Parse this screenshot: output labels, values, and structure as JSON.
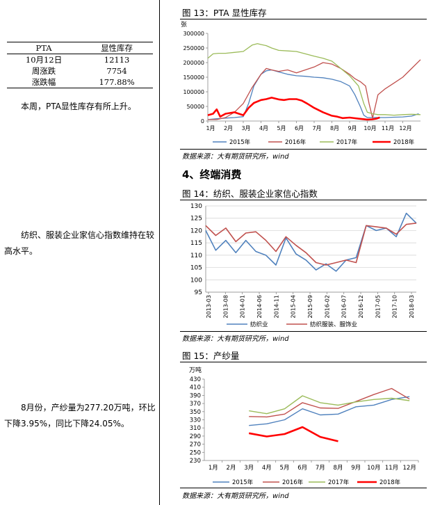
{
  "left": {
    "table": {
      "header": [
        "PTA",
        "显性库存"
      ],
      "rows": [
        [
          "10月12日",
          "12113"
        ],
        [
          "周涨跌",
          "7754"
        ],
        [
          "涨跌幅",
          "177.88%"
        ]
      ]
    },
    "para1": "本周，PTA显性库存有所上升。",
    "para2": "纺织、服装企业家信心指数维持在较高水平。",
    "para3": "8月份，产纱量为277.20万吨，环比下降3.95%，同比下降24.05%。"
  },
  "fig13": {
    "title": "图 13：PTA 显性库存",
    "source": "数据来源：大有期货研究所，wind"
  },
  "section": {
    "heading": "4、终端消费"
  },
  "fig14": {
    "title": "图 14：纺织、服装企业家信心指数",
    "source": "数据来源：大有期货研究所，wind"
  },
  "fig15": {
    "title": "图 15：产纱量",
    "source": "数据来源：大有期货研究所，wind"
  },
  "chart_data": [
    {
      "id": "fig13",
      "type": "line",
      "ylabel": "张",
      "ylim": [
        0,
        300000
      ],
      "yticks": [
        "0",
        "50000",
        "100000",
        "150000",
        "200000",
        "250000",
        "300000"
      ],
      "categories": [
        "1月",
        "2月",
        "3月",
        "4月",
        "5月",
        "6月",
        "7月",
        "8月",
        "9月",
        "10月",
        "11月",
        "12月"
      ],
      "series": [
        {
          "name": "2015年",
          "color": "#4F81BD",
          "x": [
            0,
            0.5,
            1,
            1.5,
            2,
            2.3,
            2.6,
            3,
            3.3,
            3.6,
            4,
            4.5,
            5,
            5.5,
            6,
            6.5,
            7,
            7.5,
            8,
            8.3,
            8.6,
            8.8,
            9,
            9.5,
            10,
            10.5,
            11,
            11.5,
            11.9
          ],
          "values": [
            5000,
            8000,
            10000,
            12000,
            15000,
            60000,
            120000,
            160000,
            172000,
            175000,
            168000,
            160000,
            155000,
            153000,
            150000,
            148000,
            143000,
            135000,
            120000,
            90000,
            50000,
            20000,
            12000,
            12000,
            12000,
            13000,
            14000,
            17000,
            25000
          ]
        },
        {
          "name": "2016年",
          "color": "#C0504D",
          "x": [
            0,
            0.5,
            1,
            1.5,
            2,
            2.5,
            3,
            3.3,
            3.6,
            4,
            4.5,
            5,
            5.5,
            6,
            6.5,
            7,
            7.5,
            8,
            8.3,
            8.6,
            8.9,
            9.1,
            9.3,
            9.6,
            10,
            10.5,
            11,
            11.5,
            12
          ],
          "values": [
            5000,
            5000,
            12000,
            30000,
            60000,
            115000,
            160000,
            180000,
            175000,
            170000,
            175000,
            165000,
            175000,
            185000,
            200000,
            195000,
            180000,
            160000,
            145000,
            135000,
            120000,
            60000,
            10000,
            90000,
            110000,
            130000,
            150000,
            180000,
            210000
          ]
        },
        {
          "name": "2017年",
          "color": "#9BBB59",
          "x": [
            0,
            0.3,
            0.6,
            1,
            1.5,
            2,
            2.5,
            2.8,
            3,
            3.3,
            3.6,
            4,
            4.5,
            5,
            5.5,
            6,
            6.5,
            7,
            7.5,
            8,
            8.5,
            8.8,
            9,
            9.3,
            9.6,
            10,
            10.5,
            11,
            11.5,
            12
          ],
          "values": [
            215000,
            230000,
            232000,
            232000,
            235000,
            238000,
            260000,
            265000,
            262000,
            258000,
            250000,
            242000,
            240000,
            238000,
            230000,
            222000,
            215000,
            205000,
            180000,
            155000,
            120000,
            60000,
            30000,
            25000,
            22000,
            22000,
            20000,
            22000,
            23000,
            22000
          ]
        },
        {
          "name": "2018年",
          "color": "#FF0000",
          "x": [
            0,
            0.3,
            0.5,
            0.7,
            1,
            1.5,
            2,
            2.3,
            2.6,
            3,
            3.3,
            3.6,
            4,
            4.3,
            4.6,
            5,
            5.3,
            5.6,
            6,
            6.5,
            7,
            7.3,
            7.6,
            8,
            8.5,
            9,
            9.3,
            9.5,
            9.7
          ],
          "values": [
            20000,
            25000,
            40000,
            15000,
            25000,
            30000,
            20000,
            45000,
            62000,
            72000,
            75000,
            80000,
            74000,
            72000,
            75000,
            75000,
            70000,
            60000,
            45000,
            30000,
            18000,
            15000,
            10000,
            12000,
            8000,
            5000,
            6000,
            8000,
            12113
          ]
        }
      ]
    },
    {
      "id": "fig14",
      "type": "line",
      "ylim": [
        95,
        130
      ],
      "yticks": [
        "95",
        "100",
        "105",
        "110",
        "115",
        "120",
        "125",
        "130"
      ],
      "xticks": [
        "2013-03",
        "2013-08",
        "2014-01",
        "2014-06",
        "2014-11",
        "2015-04",
        "2015-09",
        "2016-02",
        "2016-07",
        "2016-12",
        "2017-05",
        "2017-10",
        "2018-03"
      ],
      "series": [
        {
          "name": "纺织业",
          "color": "#4F81BD",
          "x": [
            0,
            1,
            2,
            3,
            4,
            5,
            6,
            7,
            8,
            9,
            10,
            11,
            12,
            13,
            14,
            15,
            16,
            17,
            18,
            19,
            20,
            21
          ],
          "values": [
            120,
            112,
            116,
            111,
            116,
            111.5,
            110,
            106,
            117,
            110.5,
            108,
            104,
            106.5,
            103.5,
            108,
            109,
            122,
            120,
            121,
            117.5,
            127,
            123
          ]
        },
        {
          "name": "纺织服装、服饰业",
          "color": "#C0504D",
          "x": [
            0,
            1,
            2,
            3,
            4,
            5,
            6,
            7,
            8,
            9,
            10,
            11,
            12,
            13,
            14,
            15,
            16,
            17,
            18,
            19,
            20,
            21
          ],
          "values": [
            122,
            118,
            121,
            115.5,
            119,
            119.5,
            116,
            111.5,
            117.5,
            114,
            111,
            107,
            106,
            107,
            108,
            107,
            122,
            121.5,
            121,
            118.5,
            122.5,
            123
          ]
        }
      ]
    },
    {
      "id": "fig15",
      "type": "line",
      "ylabel": "万吨",
      "ylim": [
        230,
        430
      ],
      "yticks": [
        "230",
        "250",
        "270",
        "290",
        "310",
        "330",
        "350",
        "370",
        "390",
        "410",
        "430"
      ],
      "categories": [
        "1月",
        "2月",
        "3月",
        "4月",
        "5月",
        "6月",
        "7月",
        "8月",
        "9月",
        "10月",
        "11月",
        "12月"
      ],
      "series": [
        {
          "name": "2015年",
          "color": "#4F81BD",
          "x": [
            3,
            4,
            5,
            6,
            7,
            8,
            9,
            10,
            11,
            12
          ],
          "values": [
            316,
            320,
            330,
            357,
            342,
            344,
            362,
            366,
            380,
            387
          ]
        },
        {
          "name": "2016年",
          "color": "#C0504D",
          "x": [
            3,
            4,
            5,
            6,
            7,
            8,
            9,
            10,
            11,
            12
          ],
          "values": [
            338,
            337,
            344,
            372,
            359,
            358,
            375,
            392,
            407,
            381
          ]
        },
        {
          "name": "2017年",
          "color": "#9BBB59",
          "x": [
            3,
            4,
            5,
            6,
            7,
            8,
            9,
            10,
            11,
            12
          ],
          "values": [
            352,
            345,
            357,
            389,
            372,
            366,
            374,
            380,
            383,
            377
          ]
        },
        {
          "name": "2018年",
          "color": "#FF0000",
          "x": [
            3,
            4,
            5,
            6,
            7,
            8
          ],
          "values": [
            297,
            289,
            295,
            312,
            288,
            277.2
          ]
        }
      ]
    }
  ]
}
